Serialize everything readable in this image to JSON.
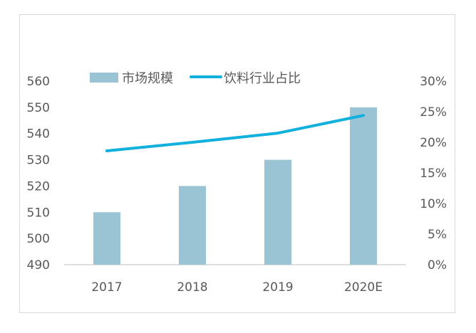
{
  "chart_data": {
    "type": "bar",
    "categories": [
      "2017",
      "2018",
      "2019",
      "2020E"
    ],
    "series": [
      {
        "name": "市场规模",
        "type": "bar",
        "axis": "left",
        "values": [
          510,
          520,
          530,
          550
        ]
      },
      {
        "name": "饮料行业占比",
        "type": "line",
        "axis": "right",
        "values": [
          0.186,
          0.2,
          0.215,
          0.244
        ]
      }
    ],
    "left_axis": {
      "ylim": [
        490,
        560
      ],
      "ticks": [
        "560",
        "550",
        "540",
        "530",
        "520",
        "510",
        "500",
        "490"
      ]
    },
    "right_axis": {
      "ylim": [
        0,
        0.3
      ],
      "ticks": [
        "30%",
        "25%",
        "20%",
        "15%",
        "10%",
        "5%",
        "0%"
      ]
    },
    "grid": false,
    "legend_position": "top-left",
    "colors": {
      "bar": "#9ac3d4",
      "line": "#11b0dd",
      "axis": "#bfbfbf",
      "text": "#595959"
    }
  }
}
